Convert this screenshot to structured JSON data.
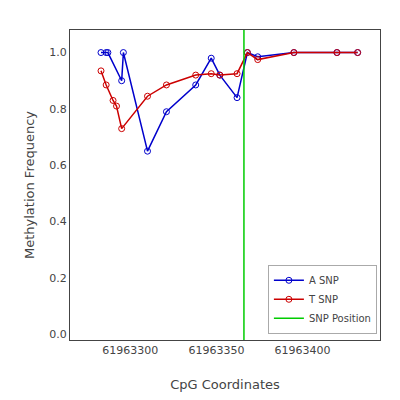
{
  "chart_data": {
    "type": "line",
    "xlabel": "CpG Coordinates",
    "ylabel": "Methylation Frequency",
    "series": [
      {
        "name": "A SNP",
        "color": "#0000CC",
        "marker": "open_circle",
        "line_style": "solid",
        "x": [
          61963283,
          61963286,
          61963287,
          61963295,
          61963296,
          61963310,
          61963321,
          61963338,
          61963347,
          61963352,
          61963362,
          61963368,
          61963374,
          61963395,
          61963420,
          61963432
        ],
        "values": [
          1.0,
          1.0,
          1.0,
          0.9,
          1.0,
          0.65,
          0.79,
          0.885,
          0.98,
          0.92,
          0.84,
          1.0,
          0.985,
          1.0,
          1.0,
          1.0
        ]
      },
      {
        "name": "T SNP",
        "color": "#CC0000",
        "marker": "open_circle",
        "line_style": "solid",
        "x": [
          61963283,
          61963286,
          61963290,
          61963292,
          61963295,
          61963310,
          61963321,
          61963338,
          61963347,
          61963352,
          61963362,
          61963368,
          61963374,
          61963395,
          61963420,
          61963432
        ],
        "values": [
          0.935,
          0.885,
          0.83,
          0.81,
          0.73,
          0.845,
          0.885,
          0.92,
          0.925,
          0.92,
          0.925,
          1.0,
          0.975,
          1.0,
          1.0,
          1.0
        ]
      },
      {
        "name": "SNP Position",
        "color": "#00CC00",
        "type": "vline",
        "line_style": "solid",
        "x": [
          61963366
        ]
      }
    ],
    "xlim": [
      61963265,
      61963445
    ],
    "ylim": [
      -0.02,
      1.08
    ],
    "xticks": [
      61963300,
      61963350,
      61963400
    ],
    "yticks": [
      {
        "value": 0.0,
        "label": "0.0"
      },
      0.2,
      0.4,
      0.6,
      0.8,
      {
        "value": 1.0,
        "label": "1.0"
      }
    ],
    "grid": false,
    "legend": "lower right"
  }
}
